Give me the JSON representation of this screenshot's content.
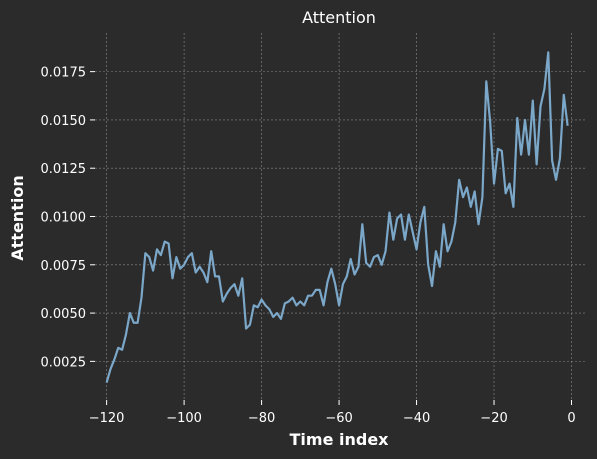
{
  "chart_data": {
    "type": "line",
    "title": "Attention",
    "xlabel": "Time index",
    "ylabel": "Attention",
    "xlim": [
      -123,
      4
    ],
    "ylim": [
      0.0005,
      0.0195
    ],
    "grid": true,
    "xticks": [
      -120,
      -100,
      -80,
      -60,
      -40,
      -20,
      0
    ],
    "xtick_labels": [
      "−120",
      "−100",
      "−80",
      "−60",
      "−40",
      "−20",
      "0"
    ],
    "yticks": [
      0.0025,
      0.005,
      0.0075,
      0.01,
      0.0125,
      0.015,
      0.0175
    ],
    "ytick_labels": [
      "0.0025",
      "0.0050",
      "0.0075",
      "0.0100",
      "0.0125",
      "0.0150",
      "0.0175"
    ],
    "colors": {
      "background": "#2b2b2b",
      "line": "#7ba7c9"
    },
    "x": [
      -120,
      -119,
      -118,
      -117,
      -116,
      -115,
      -114,
      -113,
      -112,
      -111,
      -110,
      -109,
      -108,
      -107,
      -106,
      -105,
      -104,
      -103,
      -102,
      -101,
      -100,
      -99,
      -98,
      -97,
      -96,
      -95,
      -94,
      -93,
      -92,
      -91,
      -90,
      -89,
      -88,
      -87,
      -86,
      -85,
      -84,
      -83,
      -82,
      -81,
      -80,
      -79,
      -78,
      -77,
      -76,
      -75,
      -74,
      -73,
      -72,
      -71,
      -70,
      -69,
      -68,
      -67,
      -66,
      -65,
      -64,
      -63,
      -62,
      -61,
      -60,
      -59,
      -58,
      -57,
      -56,
      -55,
      -54,
      -53,
      -52,
      -51,
      -50,
      -49,
      -48,
      -47,
      -46,
      -45,
      -44,
      -43,
      -42,
      -41,
      -40,
      -39,
      -38,
      -37,
      -36,
      -35,
      -34,
      -33,
      -32,
      -31,
      -30,
      -29,
      -28,
      -27,
      -26,
      -25,
      -24,
      -23,
      -22,
      -21,
      -20,
      -19,
      -18,
      -17,
      -16,
      -15,
      -14,
      -13,
      -12,
      -11,
      -10,
      -9,
      -8,
      -7,
      -6,
      -5,
      -4,
      -3,
      -2,
      -1
    ],
    "series": [
      {
        "values": [
          0.0014,
          0.0021,
          0.0026,
          0.0032,
          0.0031,
          0.0039,
          0.005,
          0.0045,
          0.0045,
          0.0058,
          0.0081,
          0.0079,
          0.0072,
          0.0083,
          0.008,
          0.0087,
          0.0086,
          0.0068,
          0.0079,
          0.0073,
          0.0075,
          0.0079,
          0.0081,
          0.0071,
          0.0074,
          0.0071,
          0.0066,
          0.0082,
          0.0069,
          0.0069,
          0.0056,
          0.006,
          0.0063,
          0.0065,
          0.0059,
          0.0068,
          0.0042,
          0.0044,
          0.0054,
          0.0053,
          0.0057,
          0.0054,
          0.0052,
          0.0048,
          0.005,
          0.0047,
          0.0055,
          0.0056,
          0.0058,
          0.0054,
          0.0056,
          0.0054,
          0.0059,
          0.0059,
          0.0062,
          0.0062,
          0.0054,
          0.0066,
          0.0073,
          0.0065,
          0.0054,
          0.0065,
          0.0069,
          0.0078,
          0.007,
          0.0074,
          0.0096,
          0.0076,
          0.0074,
          0.0079,
          0.008,
          0.0075,
          0.0082,
          0.0102,
          0.0088,
          0.0099,
          0.0101,
          0.0088,
          0.0101,
          0.0092,
          0.0083,
          0.0097,
          0.0105,
          0.0075,
          0.0064,
          0.0082,
          0.0074,
          0.0096,
          0.0082,
          0.0087,
          0.0097,
          0.0119,
          0.011,
          0.0115,
          0.0105,
          0.0113,
          0.0096,
          0.011,
          0.017,
          0.0149,
          0.0117,
          0.0135,
          0.0134,
          0.0112,
          0.0117,
          0.0105,
          0.0151,
          0.0132,
          0.015,
          0.0132,
          0.016,
          0.0127,
          0.0157,
          0.0166,
          0.0185,
          0.0129,
          0.0119,
          0.013,
          0.0163,
          0.0147
        ]
      }
    ]
  }
}
